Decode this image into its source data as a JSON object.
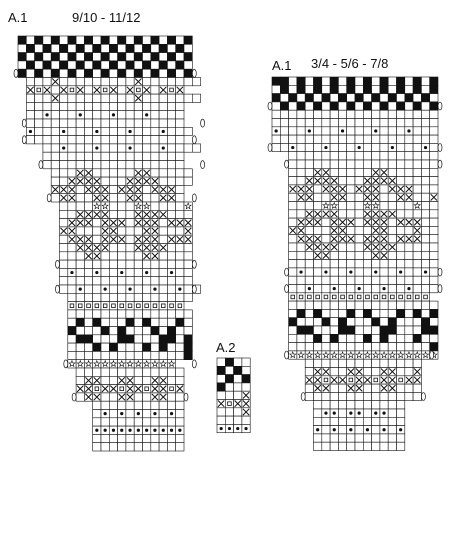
{
  "labels": {
    "chart_a1_left": "A.1",
    "sizes_left": "9/10 - 11/12",
    "chart_a1_right": "A.1",
    "sizes_right": "3/4 - 5/6 - 7/8",
    "chart_a2": "A.2"
  },
  "symbol_legend": {
    "B": "black square (filled)",
    "X": "cross stitch",
    "o": "dot",
    "q": "small open square",
    "s": "star",
    "e": "oval (increase/decrease marker at edge)"
  },
  "charts": [
    {
      "id": "a1_large",
      "label_key": "chart_a1_left",
      "bands": [
        {
          "indent": 0,
          "rows": [
            "BwBwBwBwBwBwBwBwBwBwB",
            "wBwBwBwBwBwBwBwBwBwBw",
            "BwBwBwBwBwBwBwBwBwBwB",
            "wBwBwBwBwBwBwBwBwBwBw",
            "BwBwBwBwBwBwBwBwBwBwB"
          ]
        },
        {
          "indent": 1,
          "rows": [
            "wwwXwwwwwwwwwXwwwwwww",
            "XqXwXqXwXqXwXqXwXqX",
            "wwwXwwwwwwwwwXwwwwwww",
            "wwwwwwwwwwwwwwwwwww",
            "wwowwwowwwowwwowwww",
            "wwwwwwwwwwwwwwwwwww"
          ]
        },
        {
          "indent": 1,
          "rows": [
            "owwwowwwowwwowwwowww",
            "wwwwwwwwwwwwwwwwwww"
          ]
        },
        {
          "indent": 3,
          "rows": [
            "wwowwwowwwowwwowwww",
            "wwwwwwwwwwwwwwwww",
            "wwwwwwwwwwwwwwwww"
          ]
        },
        {
          "indent": 4,
          "rows": [
            "wwwXXwwwwwXXwwwww",
            "wwXXXXwwwXXXXwwww",
            "XXXwXXXwXXXwXXXw",
            "wXXwwXXwwXXwwXXw"
          ]
        },
        {
          "indent": 5,
          "rows": [
            "wwwwsswwwsswwwws",
            "wwXXXXwwwXXXXwww",
            "wXXXwXXXwXXXwXXX",
            "XXwwwXXwwwXXwwwX",
            "wXXXwXXXwXXXwXXX",
            "wwXXXXwwwXXXXwww",
            "wwwXXwwwwwXXwwww",
            "wwwwwwwwwwwwwwww"
          ]
        },
        {
          "indent": 5,
          "rows": [
            "wowwowwowwowwoww",
            "wwwwwwwwwwwwwwww",
            "wwowwowwowwowwoww"
          ]
        },
        {
          "indent": 6,
          "rows": [
            "wwwwwwwwwwwwwww",
            "qqqqqqqqqqqqqq",
            "wwwwwwwwwwwwwww",
            "wBwBwwwBwBwwwBw",
            "BwwwBwBwwwBwBww",
            "wBBwwwBBwwwBBwB",
            "wwwBwBwwwBwBwwB",
            "wwwwwwwwwwwwwwB",
            "sssssssssssss"
          ]
        },
        {
          "indent": 7,
          "rows": [
            "wwwwwwwwwwwww",
            "wXXwwXXwwXXww",
            "XXqXXqXXqXXqX",
            "wXXwwXXwwXXww"
          ]
        },
        {
          "indent": 9,
          "rows": [
            "wwwwwwwwwww",
            "wowowowowow",
            "wwwwwwwwwww",
            "ooooooooooo",
            "wwwwwwwwwww",
            "wwwwwwwwwww"
          ]
        }
      ]
    },
    {
      "id": "a1_small",
      "label_key": "chart_a1_right",
      "bands": [
        {
          "indent": 0,
          "rows": [
            "BBwBwBwBwBwBwBwBwBwB",
            "wBwBwBwBwBwBwBwBwBwB",
            "BwBwBwBwBwBwBwBwBwBw",
            "wBwBwBwBwBwBwBwBwBwB"
          ]
        },
        {
          "indent": 0,
          "rows": [
            "wwwwwwwwwwwwwwwwwwww",
            "wwwwwwwwwwwwwwwwwwww",
            "owwwowwwowwwowwwowww",
            "wwwwwwwwwwwwwwwwwwww",
            "wwowwwowwwowwwowwwow"
          ]
        },
        {
          "indent": 2,
          "rows": [
            "wwwwwwwwwwwwwwwwww",
            "wwwwwwwwwwwwwwwwww"
          ]
        },
        {
          "indent": 2,
          "rows": [
            "wwwXXwwwwwXXwwwwww",
            "wwXXXXwwwXXXXwwwww",
            "XXXwXXXwXXXwXXXwww",
            "wXXwwXXwwXXwwXXwwX",
            "wwwwsswwwsswwwwsww",
            "wwXXXXwwwXXXXwwwww",
            "wXXXwXXXwXXXwXXXww",
            "XXwwwXXwwwXXwwwXww",
            "wXXXwXXXwXXXwXXXww",
            "wwXXXXwwwXXXXwwwww",
            "wwwXXwwwwwXXwwwwww",
            "wwwwwwwwwwwwwwwwww",
            "wowwowwowwowwowwow"
          ]
        },
        {
          "indent": 2,
          "rows": [
            "wwwwwwwwwwwwwwwwww",
            "wwowwowwowwowwowww"
          ]
        },
        {
          "indent": 2,
          "rows": [
            "qqqqqqqqqqqqqqqqq",
            "wwwwwwwwwwwwwwwwww",
            "wBwBwwwBwBwwwBwBwB",
            "BwwwBwBwwwBwBwwwBw",
            "wBBwwwBBwwwBBwwwBB",
            "wwwBwBwwwBwBwwwBww",
            "wwwwwwwwwwwwwwwwwB",
            "ssssssssssssssssss"
          ]
        },
        {
          "indent": 4,
          "rows": [
            "wwwwwwwwwwwwww",
            "wXXwwXXwwXXwwX",
            "XXqXXqXXqXXqXX",
            "wXXwwXXwwXXwww",
            "wwwwwwwwwwwwww"
          ]
        },
        {
          "indent": 5,
          "rows": [
            "wwwwwwwwwww",
            "woowoowooww",
            "wwwwwwwwwww",
            "owowowowowo",
            "wwwwwwwwwww",
            "wwwwwwwwwww"
          ]
        }
      ]
    },
    {
      "id": "a2",
      "label_key": "chart_a2",
      "bands": [
        {
          "indent": 0,
          "rows": [
            "wBww",
            "BwBw",
            "wBwB",
            "Bwww",
            "wwwX",
            "XqXX",
            "wwwX",
            "wwww",
            "oooo"
          ]
        }
      ]
    }
  ]
}
